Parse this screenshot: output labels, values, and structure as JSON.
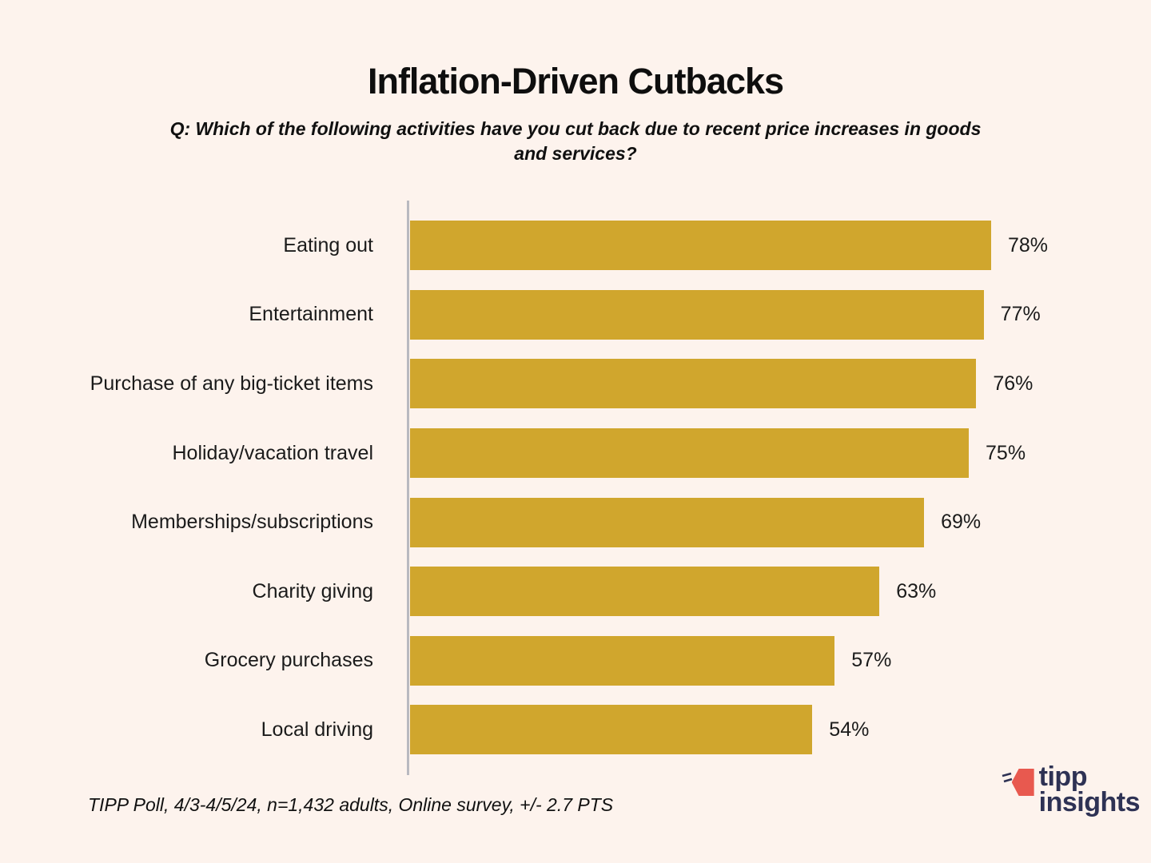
{
  "page": {
    "background_color": "#FDF3ED"
  },
  "header": {
    "title": "Inflation-Driven Cutbacks",
    "subtitle": "Q: Which of the following activities have you cut back due to recent price increases in goods and services?"
  },
  "chart_data": {
    "type": "bar",
    "orientation": "horizontal",
    "title": "Inflation-Driven Cutbacks",
    "categories": [
      "Eating out",
      "Entertainment",
      "Purchase of any big-ticket items",
      "Holiday/vacation travel",
      "Memberships/subscriptions",
      "Charity giving",
      "Grocery purchases",
      "Local driving"
    ],
    "values": [
      78,
      77,
      76,
      75,
      69,
      63,
      57,
      54
    ],
    "value_suffix": "%",
    "xlim": [
      0,
      78
    ],
    "grid": false,
    "legend": "none",
    "bar_color": "#D0A62D",
    "axis_color": "#B9B9C0",
    "label_color": "#1b1b1b"
  },
  "footer": {
    "source_note": "TIPP Poll, 4/3-4/5/24, n=1,432 adults, Online survey, +/- 2.7 PTS"
  },
  "logo": {
    "icon": "tipp-flag-arrow-icon",
    "line1": "tipp",
    "line2": "insights",
    "text_color": "#2E3254",
    "icon_color": "#E8594F"
  }
}
